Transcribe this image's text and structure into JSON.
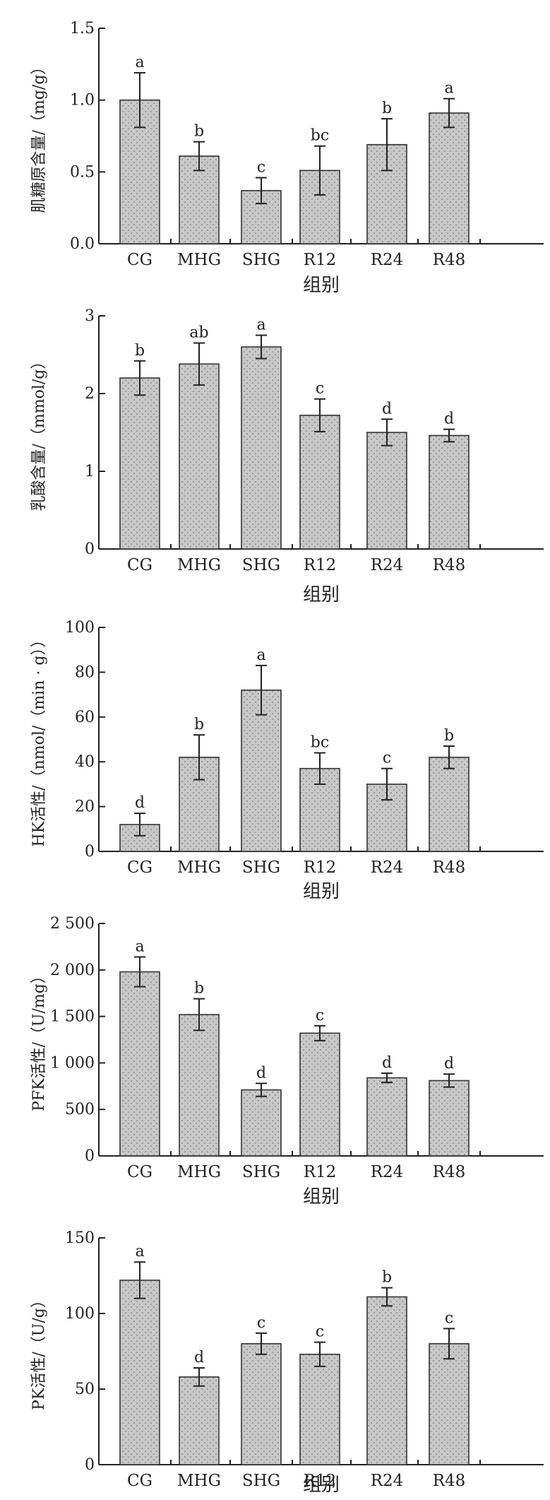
{
  "chart_data": [
    {
      "type": "bar",
      "categories": [
        "CG",
        "MHG",
        "SHG",
        "R12",
        "R24",
        "R48"
      ],
      "values": [
        1.0,
        0.61,
        0.37,
        0.51,
        0.69,
        0.91
      ],
      "errors": [
        0.19,
        0.1,
        0.09,
        0.17,
        0.18,
        0.1
      ],
      "letters": [
        "a",
        "b",
        "c",
        "bc",
        "b",
        "a"
      ],
      "yticks": [
        "0.0",
        "0.5",
        "1.0",
        "1.5"
      ],
      "ylim": [
        0,
        1.5
      ],
      "ylabel": "肌糖原含量/（mg/g）",
      "xlabel": "组别"
    },
    {
      "type": "bar",
      "categories": [
        "CG",
        "MHG",
        "SHG",
        "R12",
        "R24",
        "R48"
      ],
      "values": [
        2.2,
        2.38,
        2.6,
        1.72,
        1.5,
        1.46
      ],
      "errors": [
        0.22,
        0.27,
        0.15,
        0.21,
        0.17,
        0.08
      ],
      "letters": [
        "b",
        "ab",
        "a",
        "c",
        "d",
        "d"
      ],
      "yticks": [
        "0",
        "1",
        "2",
        "3"
      ],
      "ylim": [
        0,
        3
      ],
      "ylabel": "乳酸含量/（mmol/g）",
      "xlabel": "组别"
    },
    {
      "type": "bar",
      "categories": [
        "CG",
        "MHG",
        "SHG",
        "R12",
        "R24",
        "R48"
      ],
      "values": [
        12,
        42,
        72,
        37,
        30,
        42
      ],
      "errors": [
        5,
        10,
        11,
        7,
        7,
        5
      ],
      "letters": [
        "d",
        "b",
        "a",
        "bc",
        "c",
        "b"
      ],
      "yticks": [
        "0",
        "20",
        "40",
        "60",
        "80",
        "100"
      ],
      "ylim": [
        0,
        100
      ],
      "ylabel": "HK活性/（nmol/（min · g））",
      "xlabel": "组别"
    },
    {
      "type": "bar",
      "categories": [
        "CG",
        "MHG",
        "SHG",
        "R12",
        "R24",
        "R48"
      ],
      "values": [
        1980,
        1520,
        710,
        1320,
        840,
        810
      ],
      "errors": [
        160,
        170,
        70,
        80,
        50,
        70
      ],
      "letters": [
        "a",
        "b",
        "d",
        "c",
        "d",
        "d"
      ],
      "yticks": [
        "0",
        "500",
        "1 000",
        "1 500",
        "2 000",
        "2 500"
      ],
      "ylim": [
        0,
        2500
      ],
      "ylabel": "PFK活性/（U/mg）",
      "xlabel": "组别"
    },
    {
      "type": "bar",
      "categories": [
        "CG",
        "MHG",
        "SHG",
        "R12",
        "R24",
        "R48"
      ],
      "values": [
        122,
        58,
        80,
        73,
        111,
        80
      ],
      "errors": [
        12,
        6,
        7,
        8,
        6,
        10
      ],
      "letters": [
        "a",
        "d",
        "c",
        "c",
        "b",
        "c"
      ],
      "yticks": [
        "0",
        "50",
        "100",
        "150"
      ],
      "ylim": [
        0,
        150
      ],
      "ylabel": "PK活性/（U/g）",
      "xlabel": "组别"
    }
  ]
}
